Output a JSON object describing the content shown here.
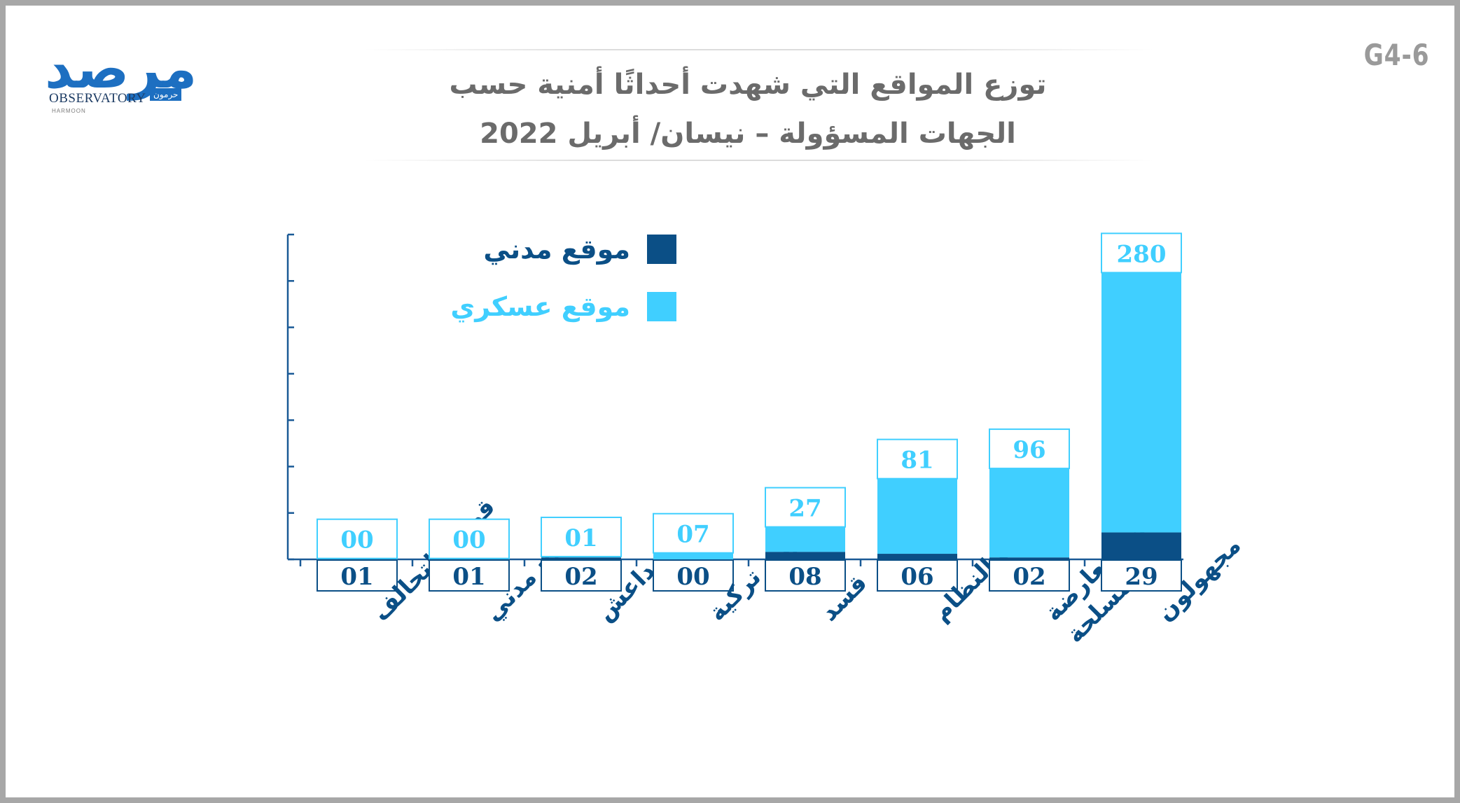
{
  "header": {
    "code": "G4-6",
    "title_line1": "توزع المواقع التي شهدت أحداثًا أمنية حسب",
    "title_line2": "الجهات المسؤولة – نيسان/ أبريل 2022"
  },
  "logo": {
    "word": "مرصد",
    "sub": "OBSERVATORY",
    "ar": "حرمون",
    "small": "HARMOON"
  },
  "colors": {
    "civil": "#0b4f86",
    "military": "#40cfff",
    "axis": "#1a5a96"
  },
  "chart_data": {
    "type": "bar",
    "stacked": true,
    "title": "توزع المواقع التي شهدت أحداثًا أمنية حسب الجهات المسؤولة – نيسان/ أبريل 2022",
    "categories": [
      "قوات التحالف",
      "مسلح مدني",
      "داعش",
      "قوات تركية",
      "قسد",
      "قوات النظام",
      "قوات المعارضة المسلحة",
      "مجهولون"
    ],
    "category_lines": [
      [
        "قوات التحالف"
      ],
      [
        "مسلح مدني"
      ],
      [
        "داعش"
      ],
      [
        "قوات تركية"
      ],
      [
        "قسد"
      ],
      [
        "قوات النظام"
      ],
      [
        "قوات المعارضة",
        "المسلحة"
      ],
      [
        "مجهولون"
      ]
    ],
    "series": [
      {
        "name": "موقع مدني",
        "values": [
          1,
          1,
          2,
          0,
          8,
          6,
          2,
          29
        ],
        "labels": [
          "01",
          "01",
          "02",
          "00",
          "08",
          "06",
          "02",
          "29"
        ]
      },
      {
        "name": "موقع عسكري",
        "values": [
          0,
          0,
          1,
          7,
          27,
          81,
          96,
          280
        ],
        "labels": [
          "00",
          "00",
          "01",
          "07",
          "27",
          "81",
          "96",
          "280"
        ]
      }
    ],
    "ylim": [
      0,
      350
    ],
    "legend_position": "top-left",
    "xlabel": "",
    "ylabel": ""
  }
}
